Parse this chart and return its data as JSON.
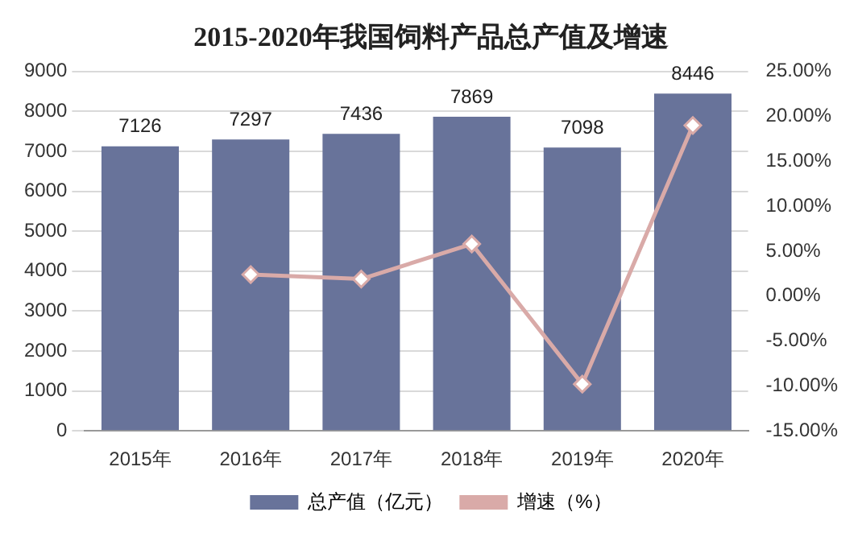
{
  "chart_data": {
    "type": "bar",
    "title": "2015-2020年我国饲料产品总产值及增速",
    "categories": [
      "2015年",
      "2016年",
      "2017年",
      "2018年",
      "2019年",
      "2020年"
    ],
    "series": [
      {
        "name": "总产值（亿元）",
        "color": "#68739a",
        "values": [
          7126,
          7297,
          7436,
          7869,
          7098,
          8446
        ],
        "value_labels": [
          "7126",
          "7297",
          "7436",
          "7869",
          "7098",
          "8446"
        ]
      },
      {
        "name": "增速（%）",
        "type": "line",
        "axis": "y2",
        "color": "#d9aaa8",
        "marker": "diamond",
        "values": [
          null,
          2.4,
          1.9,
          5.8,
          -9.8,
          19.0
        ]
      }
    ],
    "ylim": [
      0,
      9000
    ],
    "yticks": [
      0,
      1000,
      2000,
      3000,
      4000,
      5000,
      6000,
      7000,
      8000,
      9000
    ],
    "y2lim": [
      -15,
      25
    ],
    "y2ticks": [
      {
        "value": -15,
        "label": "-15.00%"
      },
      {
        "value": -10,
        "label": "-10.00%"
      },
      {
        "value": -5,
        "label": "-5.00%"
      },
      {
        "value": 0,
        "label": "0.00%"
      },
      {
        "value": 5,
        "label": "5.00%"
      },
      {
        "value": 10,
        "label": "10.00%"
      },
      {
        "value": 15,
        "label": "15.00%"
      },
      {
        "value": 20,
        "label": "20.00%"
      },
      {
        "value": 25,
        "label": "25.00%"
      }
    ],
    "grid": "y",
    "legend": "bottom"
  }
}
